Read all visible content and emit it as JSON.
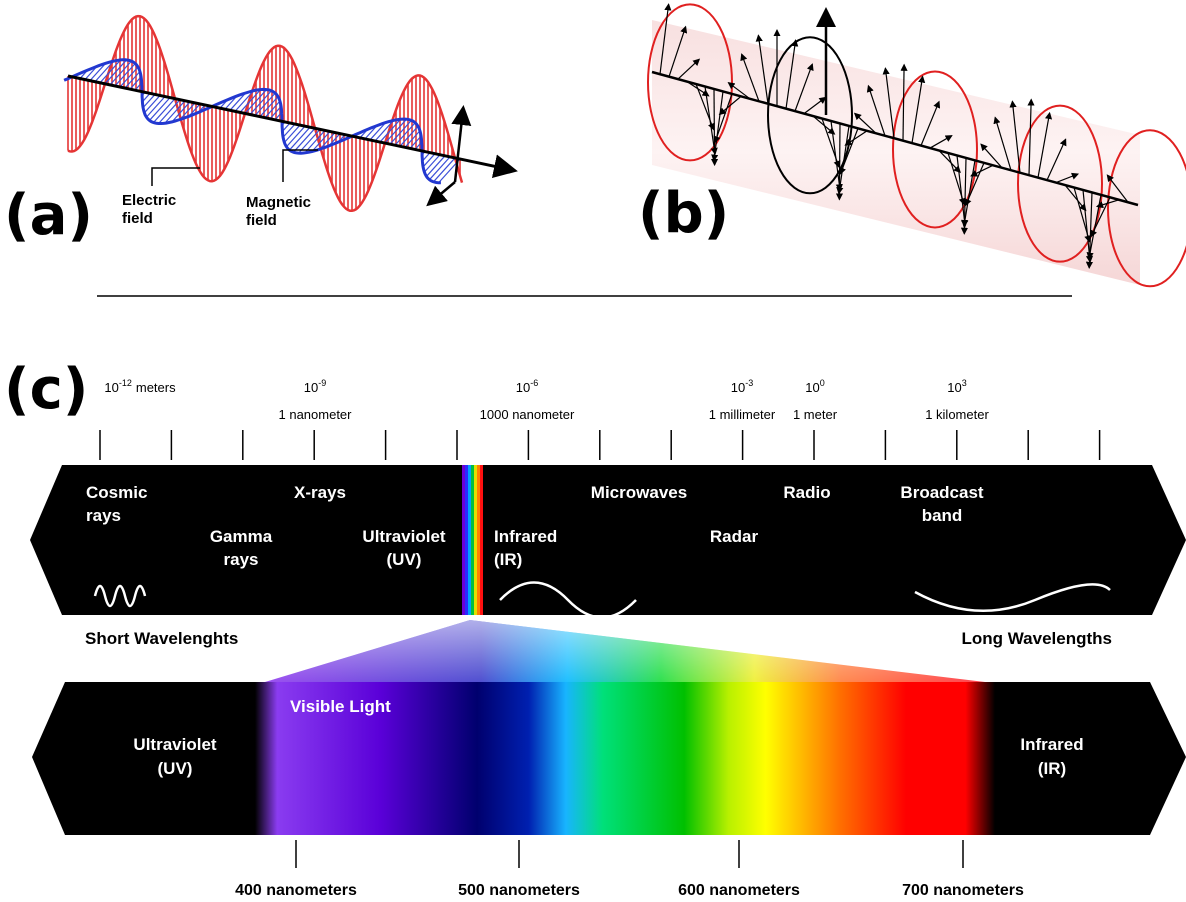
{
  "panel_a": {
    "label": "(a)",
    "electric": [
      "Electric",
      "field"
    ],
    "magnetic": [
      "Magnetic",
      "field"
    ]
  },
  "panel_b": {
    "label": "(b)"
  },
  "panel_c": {
    "label": "(c)",
    "scale": [
      {
        "base": "10",
        "exp": "-12",
        "unit": "meters"
      },
      {
        "base": "10",
        "exp": "-9",
        "name": "1 nanometer"
      },
      {
        "base": "10",
        "exp": "-6",
        "name": "1000 nanometer"
      },
      {
        "base": "10",
        "exp": "-3",
        "name": "1 millimeter"
      },
      {
        "base": "10",
        "exp": "0",
        "name": "1 meter"
      },
      {
        "base": "10",
        "exp": "3",
        "name": "1 kilometer"
      }
    ],
    "bands": [
      {
        "lines": [
          "Cosmic",
          "rays"
        ]
      },
      {
        "lines": [
          "Gamma",
          "rays"
        ]
      },
      {
        "lines": [
          "X-rays"
        ]
      },
      {
        "lines": [
          "Ultraviolet",
          "(UV)"
        ]
      },
      {
        "lines": [
          "Infrared",
          "(IR)"
        ]
      },
      {
        "lines": [
          "Microwaves"
        ]
      },
      {
        "lines": [
          "Radar"
        ]
      },
      {
        "lines": [
          "Radio"
        ]
      },
      {
        "lines": [
          "Broadcast",
          "band"
        ]
      }
    ],
    "short": "Short Wavelenghts",
    "long": "Long Wavelengths",
    "visible": {
      "title": "Visible Light",
      "left": [
        "Ultraviolet",
        "(UV)"
      ],
      "right": [
        "Infrared",
        "(IR)"
      ],
      "ticks": [
        "400 nanometers",
        "500 nanometers",
        "600 nanometers",
        "700 nanometers"
      ]
    }
  }
}
